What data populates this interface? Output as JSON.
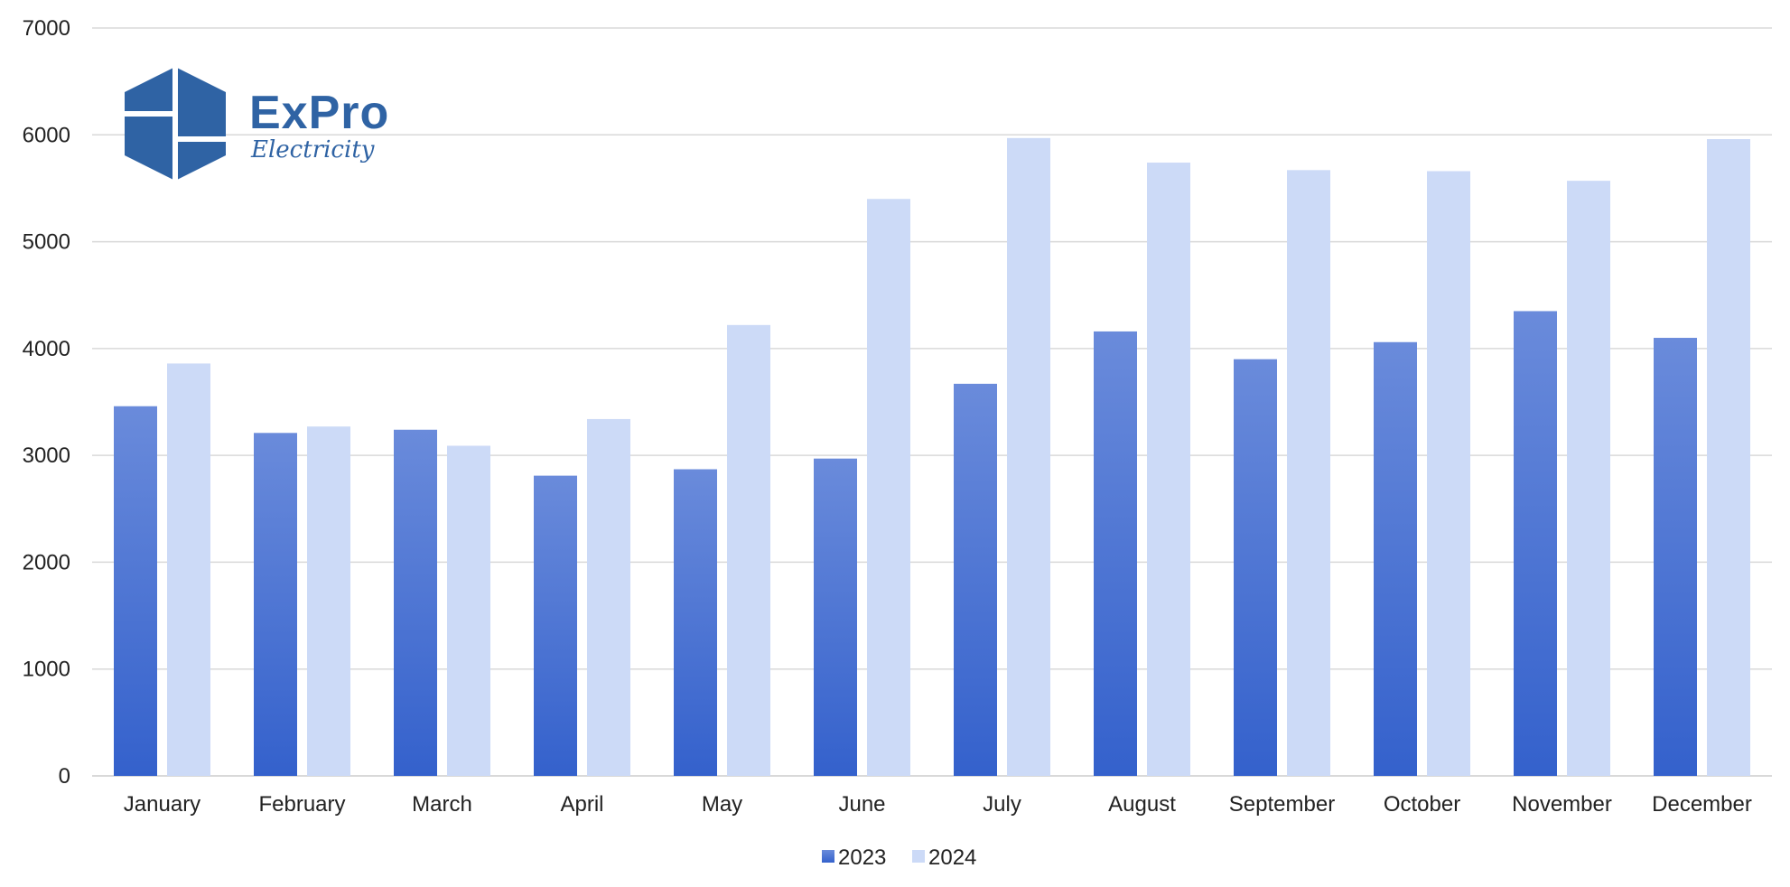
{
  "logo": {
    "name": "ExPro",
    "tagline": "Electricity",
    "color": "#2f63a4"
  },
  "colors": {
    "series_2023_top": "#6a8bdb",
    "series_2023_bottom": "#3461cc",
    "series_2024": "#ccdaf7",
    "grid": "#d9d9d9"
  },
  "chart_data": {
    "type": "bar",
    "title": "",
    "xlabel": "",
    "ylabel": "",
    "ylim": [
      0,
      7000
    ],
    "yticks": [
      0,
      1000,
      2000,
      3000,
      4000,
      5000,
      6000,
      7000
    ],
    "grid": true,
    "legend_position": "bottom",
    "categories": [
      "January",
      "February",
      "March",
      "April",
      "May",
      "June",
      "July",
      "August",
      "September",
      "October",
      "November",
      "December"
    ],
    "series": [
      {
        "name": "2023",
        "values": [
          3460,
          3210,
          3240,
          2810,
          2870,
          2970,
          3670,
          4160,
          3900,
          4060,
          4350,
          4100
        ]
      },
      {
        "name": "2024",
        "values": [
          3860,
          3270,
          3090,
          3340,
          4220,
          5400,
          5970,
          5740,
          5670,
          5660,
          5570,
          5960
        ]
      }
    ]
  }
}
